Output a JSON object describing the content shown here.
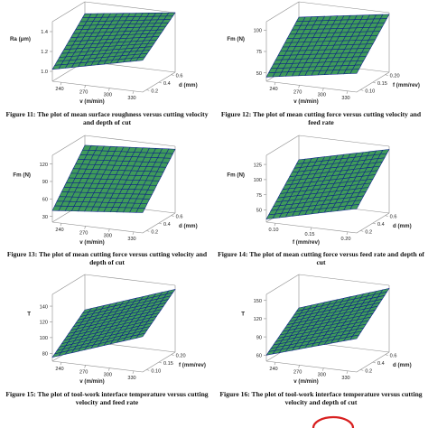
{
  "colors": {
    "surface": "#3f9b5a",
    "mesh": "#0c1f8a",
    "box": "#8a8a8a",
    "text": "#222222",
    "stamp": "#d82020"
  },
  "figures": [
    {
      "caption": "Figure 11: The plot of mean surface roughness versus cutting velocity and depth of cut",
      "chart_data": {
        "type": "surface3d",
        "zlabel": "Ra (μm)",
        "xlabel": "v (m/min)",
        "ylabel": "d (mm)",
        "xticks": [
          "240",
          "270",
          "300",
          "330"
        ],
        "yticks": [
          "0.2",
          "0.4",
          "0.6"
        ],
        "zticks": [
          "1.0",
          "1.2",
          "1.4"
        ],
        "zlim": [
          0.9,
          1.5
        ],
        "corners": {
          "x0y0": 1.02,
          "x1y0": 1.22,
          "x0y1": 1.38,
          "x1y1": 1.5
        },
        "grid": true
      }
    },
    {
      "caption": "Figure 12: The plot of mean cutting force versus cutting velocity and feed rate",
      "chart_data": {
        "type": "surface3d",
        "zlabel": "Fm (N)",
        "xlabel": "v (m/min)",
        "ylabel": "f (mm/rev)",
        "xticks": [
          "240",
          "270",
          "300",
          "330"
        ],
        "yticks": [
          "0.10",
          "0.15",
          "0.20"
        ],
        "zticks": [
          "50",
          "75",
          "100"
        ],
        "zlim": [
          40,
          110
        ],
        "corners": {
          "x0y0": 45,
          "x1y0": 62,
          "x0y1": 92,
          "x1y1": 108
        },
        "grid": true
      }
    },
    {
      "caption": "Figure 13: The plot of mean cutting force versus cutting velocity and depth of cut",
      "chart_data": {
        "type": "surface3d",
        "zlabel": "Fm (N)",
        "xlabel": "v (m/min)",
        "ylabel": "d (mm)",
        "xticks": [
          "240",
          "270",
          "300",
          "330"
        ],
        "yticks": [
          "0.2",
          "0.4",
          "0.6"
        ],
        "zticks": [
          "30",
          "60",
          "90",
          "120"
        ],
        "zlim": [
          20,
          135
        ],
        "corners": {
          "x0y0": 40,
          "x1y0": 55,
          "x0y1": 118,
          "x1y1": 130
        },
        "grid": true
      }
    },
    {
      "caption": "Figure 14: The plot of mean cutting force versus feed rate and depth of cut",
      "chart_data": {
        "type": "surface3d",
        "zlabel": "Fm (N)",
        "xlabel": "f (mm/rev)",
        "ylabel": "d (mm)",
        "xticks": [
          "0.10",
          "0.15",
          "0.20"
        ],
        "yticks": [
          "0.2",
          "0.4",
          "0.6"
        ],
        "zticks": [
          "50",
          "75",
          "100",
          "125"
        ],
        "zlim": [
          30,
          140
        ],
        "corners": {
          "x0y0": 35,
          "x1y0": 70,
          "x0y1": 100,
          "x1y1": 135
        },
        "grid": true
      }
    },
    {
      "caption": "Figure 15: The plot of tool-work interface temperature versus cutting velocity and feed rate",
      "chart_data": {
        "type": "surface3d",
        "zlabel": "T",
        "xlabel": "v (m/min)",
        "ylabel": "f (mm/rev)",
        "xticks": [
          "240",
          "270",
          "300",
          "330"
        ],
        "yticks": [
          "0.10",
          "0.15",
          "0.20"
        ],
        "zticks": [
          "80",
          "100",
          "120",
          "140"
        ],
        "zlim": [
          70,
          155
        ],
        "corners": {
          "x0y0": 75,
          "x1y0": 115,
          "x0y1": 110,
          "x1y1": 150
        },
        "grid": true
      }
    },
    {
      "caption": "Figure 16: The plot of tool-work interface temperature versus cutting velocity and depth of cut",
      "chart_data": {
        "type": "surface3d",
        "zlabel": "T",
        "xlabel": "v (m/min)",
        "ylabel": "d (mm)",
        "xticks": [
          "240",
          "270",
          "300",
          "330"
        ],
        "yticks": [
          "0.2",
          "0.4",
          "0.6"
        ],
        "zticks": [
          "60",
          "90",
          "120",
          "150"
        ],
        "zlim": [
          50,
          160
        ],
        "corners": {
          "x0y0": 60,
          "x1y0": 105,
          "x0y1": 105,
          "x1y1": 155
        },
        "grid": true
      }
    }
  ]
}
